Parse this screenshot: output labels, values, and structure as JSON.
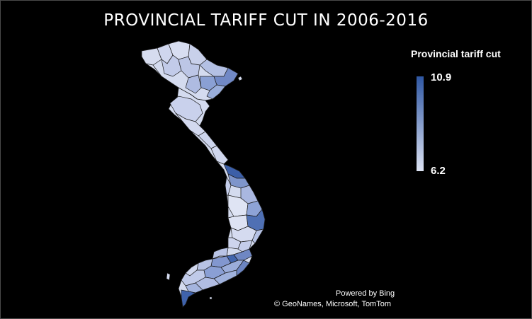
{
  "title": "PROVINCIAL TARIFF CUT IN 2006-2016",
  "legend": {
    "title": "Provincial tariff cut",
    "max_label": "10.9",
    "min_label": "6.2",
    "color_high": "#2f57a3",
    "color_low": "#dde3f3"
  },
  "credits": {
    "line1": "Powered by Bing",
    "line2": "© GeoNames, Microsoft, TomTom"
  },
  "map": {
    "region": "Vietnam provinces",
    "province_border_color": "#1a1a1a"
  }
}
